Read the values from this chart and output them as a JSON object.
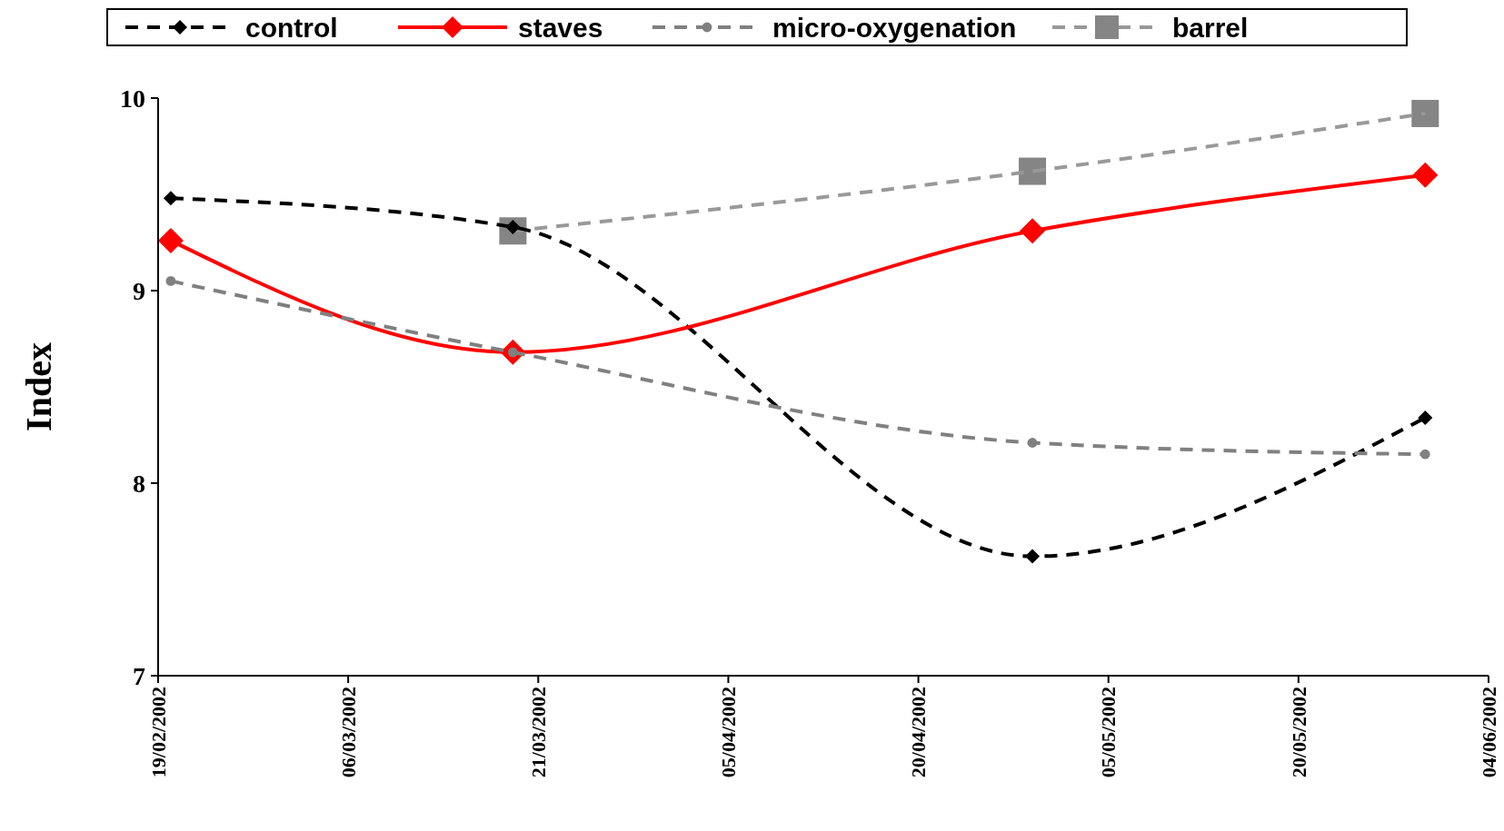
{
  "chart_data": {
    "type": "line",
    "ylabel": "Index",
    "ylim": [
      7,
      10
    ],
    "yticks": [
      7,
      8,
      9,
      10
    ],
    "xlim": [
      "2002-02-19",
      "2002-06-04"
    ],
    "xticks": [
      {
        "value": "2002-02-19",
        "label": "19/02/2002"
      },
      {
        "value": "2002-03-06",
        "label": "06/03/2002"
      },
      {
        "value": "2002-03-21",
        "label": "21/03/2002"
      },
      {
        "value": "2002-04-05",
        "label": "05/04/2002"
      },
      {
        "value": "2002-04-20",
        "label": "20/04/2002"
      },
      {
        "value": "2002-05-05",
        "label": "05/05/2002"
      },
      {
        "value": "2002-05-20",
        "label": "20/05/2002"
      },
      {
        "value": "2002-06-04",
        "label": "04/06/2002"
      }
    ],
    "grid": false,
    "legend": "top",
    "series": [
      {
        "name": "control",
        "color": "#000000",
        "marker": "diamond",
        "line_style": "dashed",
        "x": [
          "2002-02-20",
          "2002-03-19",
          "2002-04-29",
          "2002-05-30"
        ],
        "values": [
          9.48,
          9.33,
          7.62,
          8.34
        ]
      },
      {
        "name": "staves",
        "color": "#ff0000",
        "marker": "diamond",
        "line_style": "solid",
        "x": [
          "2002-02-20",
          "2002-03-19",
          "2002-04-29",
          "2002-05-30"
        ],
        "values": [
          9.26,
          8.68,
          9.31,
          9.6
        ]
      },
      {
        "name": "micro-oxygenation",
        "color": "#808080",
        "marker": "circle",
        "line_style": "dashed",
        "x": [
          "2002-02-20",
          "2002-03-19",
          "2002-04-29",
          "2002-05-30"
        ],
        "values": [
          9.05,
          8.68,
          8.21,
          8.15
        ]
      },
      {
        "name": "barrel",
        "color": "#999999",
        "marker": "square",
        "line_style": "dashed",
        "x": [
          "2002-03-19",
          "2002-04-29",
          "2002-05-30"
        ],
        "values": [
          9.31,
          9.62,
          9.92
        ]
      }
    ]
  }
}
